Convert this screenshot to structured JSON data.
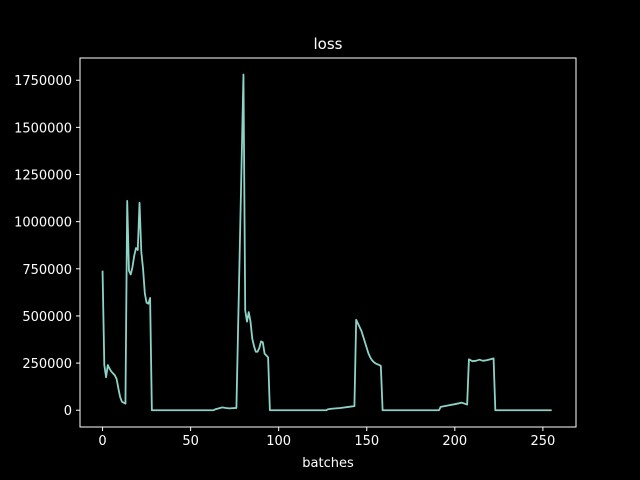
{
  "chart_data": {
    "type": "line",
    "title": "loss",
    "xlabel": "batches",
    "ylabel": "",
    "xlim": [
      -12.8,
      268.8
    ],
    "ylim": [
      -88950,
      1867950
    ],
    "grid": false,
    "legend": "none",
    "background_color": "#000000",
    "axes_color": "#ffffff",
    "x_ticks": [
      0,
      50,
      100,
      150,
      200,
      250
    ],
    "x_tick_labels": [
      "0",
      "50",
      "100",
      "150",
      "200",
      "250"
    ],
    "y_ticks": [
      0,
      250000,
      500000,
      750000,
      1000000,
      1250000,
      1500000,
      1750000
    ],
    "y_tick_labels": [
      "0",
      "250000",
      "500000",
      "750000",
      "1000000",
      "1250000",
      "1500000",
      "1750000"
    ],
    "series": [
      {
        "color": "#8dd3c7",
        "x": [
          0,
          1,
          2,
          3,
          4,
          5,
          6,
          7,
          8,
          9,
          10,
          11,
          12,
          13,
          14,
          15,
          16,
          17,
          18,
          19,
          20,
          21,
          22,
          23,
          24,
          25,
          26,
          27,
          28,
          29,
          30,
          31,
          32,
          40,
          48,
          56,
          63,
          64,
          66,
          68,
          70,
          72,
          76,
          80,
          81,
          82,
          83,
          84,
          85,
          86,
          87,
          88,
          89,
          90,
          91,
          92,
          93,
          94,
          95,
          96,
          97,
          98,
          100,
          110,
          120,
          127,
          128,
          130,
          135,
          140,
          143,
          144,
          145,
          146,
          147,
          148,
          149,
          150,
          151,
          152,
          153,
          154,
          155,
          156,
          157,
          158,
          159,
          160,
          170,
          180,
          191,
          192,
          196,
          200,
          204,
          207,
          208,
          210,
          212,
          214,
          216,
          218,
          220,
          222,
          223,
          224,
          230,
          240,
          250,
          255
        ],
        "y": [
          740000,
          240000,
          175000,
          240000,
          220000,
          205000,
          195000,
          185000,
          165000,
          115000,
          70000,
          45000,
          40000,
          35000,
          1110000,
          740000,
          720000,
          760000,
          820000,
          860000,
          850000,
          1100000,
          840000,
          750000,
          620000,
          570000,
          565000,
          595000,
          0,
          0,
          0,
          0,
          0,
          0,
          0,
          0,
          0,
          5000,
          10000,
          15000,
          12000,
          10000,
          12000,
          1780000,
          530000,
          470000,
          520000,
          470000,
          380000,
          340000,
          310000,
          310000,
          330000,
          365000,
          360000,
          300000,
          290000,
          280000,
          0,
          0,
          0,
          0,
          0,
          0,
          0,
          0,
          5000,
          8000,
          12000,
          18000,
          22000,
          480000,
          460000,
          440000,
          420000,
          390000,
          360000,
          330000,
          300000,
          280000,
          265000,
          255000,
          248000,
          244000,
          240000,
          235000,
          0,
          0,
          0,
          0,
          0,
          18000,
          25000,
          32000,
          40000,
          30000,
          270000,
          260000,
          262000,
          268000,
          262000,
          265000,
          270000,
          275000,
          0,
          0,
          0,
          0,
          0,
          0
        ]
      }
    ]
  }
}
